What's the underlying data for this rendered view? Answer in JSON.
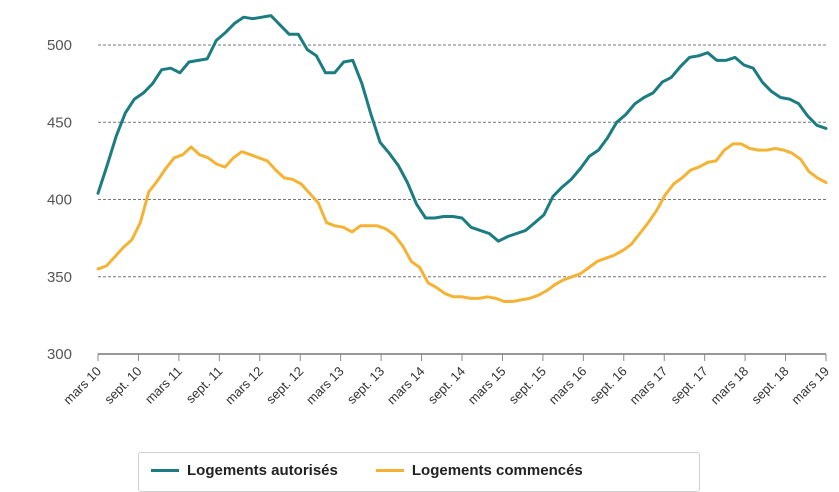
{
  "chart_data": {
    "type": "line",
    "x_labels": [
      "mars 10",
      "sept. 10",
      "mars 11",
      "sept. 11",
      "mars 12",
      "sept. 12",
      "mars 13",
      "sept. 13",
      "mars 14",
      "sept. 14",
      "mars 15",
      "sept. 15",
      "mars 16",
      "sept. 16",
      "mars 17",
      "sept. 17",
      "mars 18",
      "sept. 18",
      "mars 19"
    ],
    "ylim": [
      300,
      500
    ],
    "y_ticks": [
      300,
      350,
      400,
      450,
      500
    ],
    "grid": true,
    "legend_position": "bottom",
    "series": [
      {
        "name": "Logements autorisés",
        "color": "#1b7c82",
        "values": [
          404,
          422,
          441,
          456,
          465,
          469,
          475,
          484,
          485,
          482,
          489,
          490,
          491,
          503,
          508,
          514,
          518,
          517,
          518,
          519,
          513,
          507,
          507,
          497,
          493,
          482,
          482,
          489,
          490,
          475,
          455,
          437,
          430,
          422,
          411,
          397,
          388,
          388,
          389,
          389,
          388,
          382,
          380,
          378,
          373,
          376,
          378,
          380,
          385,
          390,
          402,
          408,
          413,
          420,
          428,
          432,
          440,
          450,
          455,
          462,
          466,
          469,
          476,
          479,
          486,
          492,
          493,
          495,
          490,
          490,
          492,
          487,
          485,
          476,
          470,
          466,
          465,
          462,
          454,
          448,
          446
        ]
      },
      {
        "name": "Logements commencés",
        "color": "#f5b335",
        "values": [
          355,
          357,
          363,
          369,
          374,
          385,
          405,
          412,
          420,
          427,
          429,
          434,
          429,
          427,
          423,
          421,
          427,
          431,
          429,
          427,
          425,
          419,
          414,
          413,
          410,
          404,
          398,
          385,
          383,
          382,
          379,
          383,
          383,
          383,
          381,
          377,
          370,
          360,
          356,
          346,
          343,
          339,
          337,
          337,
          336,
          336,
          337,
          336,
          334,
          334,
          335,
          336,
          338,
          341,
          345,
          348,
          350,
          352,
          356,
          360,
          362,
          364,
          367,
          371,
          378,
          385,
          393,
          403,
          410,
          414,
          419,
          421,
          424,
          425,
          432,
          436,
          436,
          433,
          432,
          432,
          433,
          432,
          430,
          426,
          418,
          414,
          411
        ]
      }
    ]
  }
}
